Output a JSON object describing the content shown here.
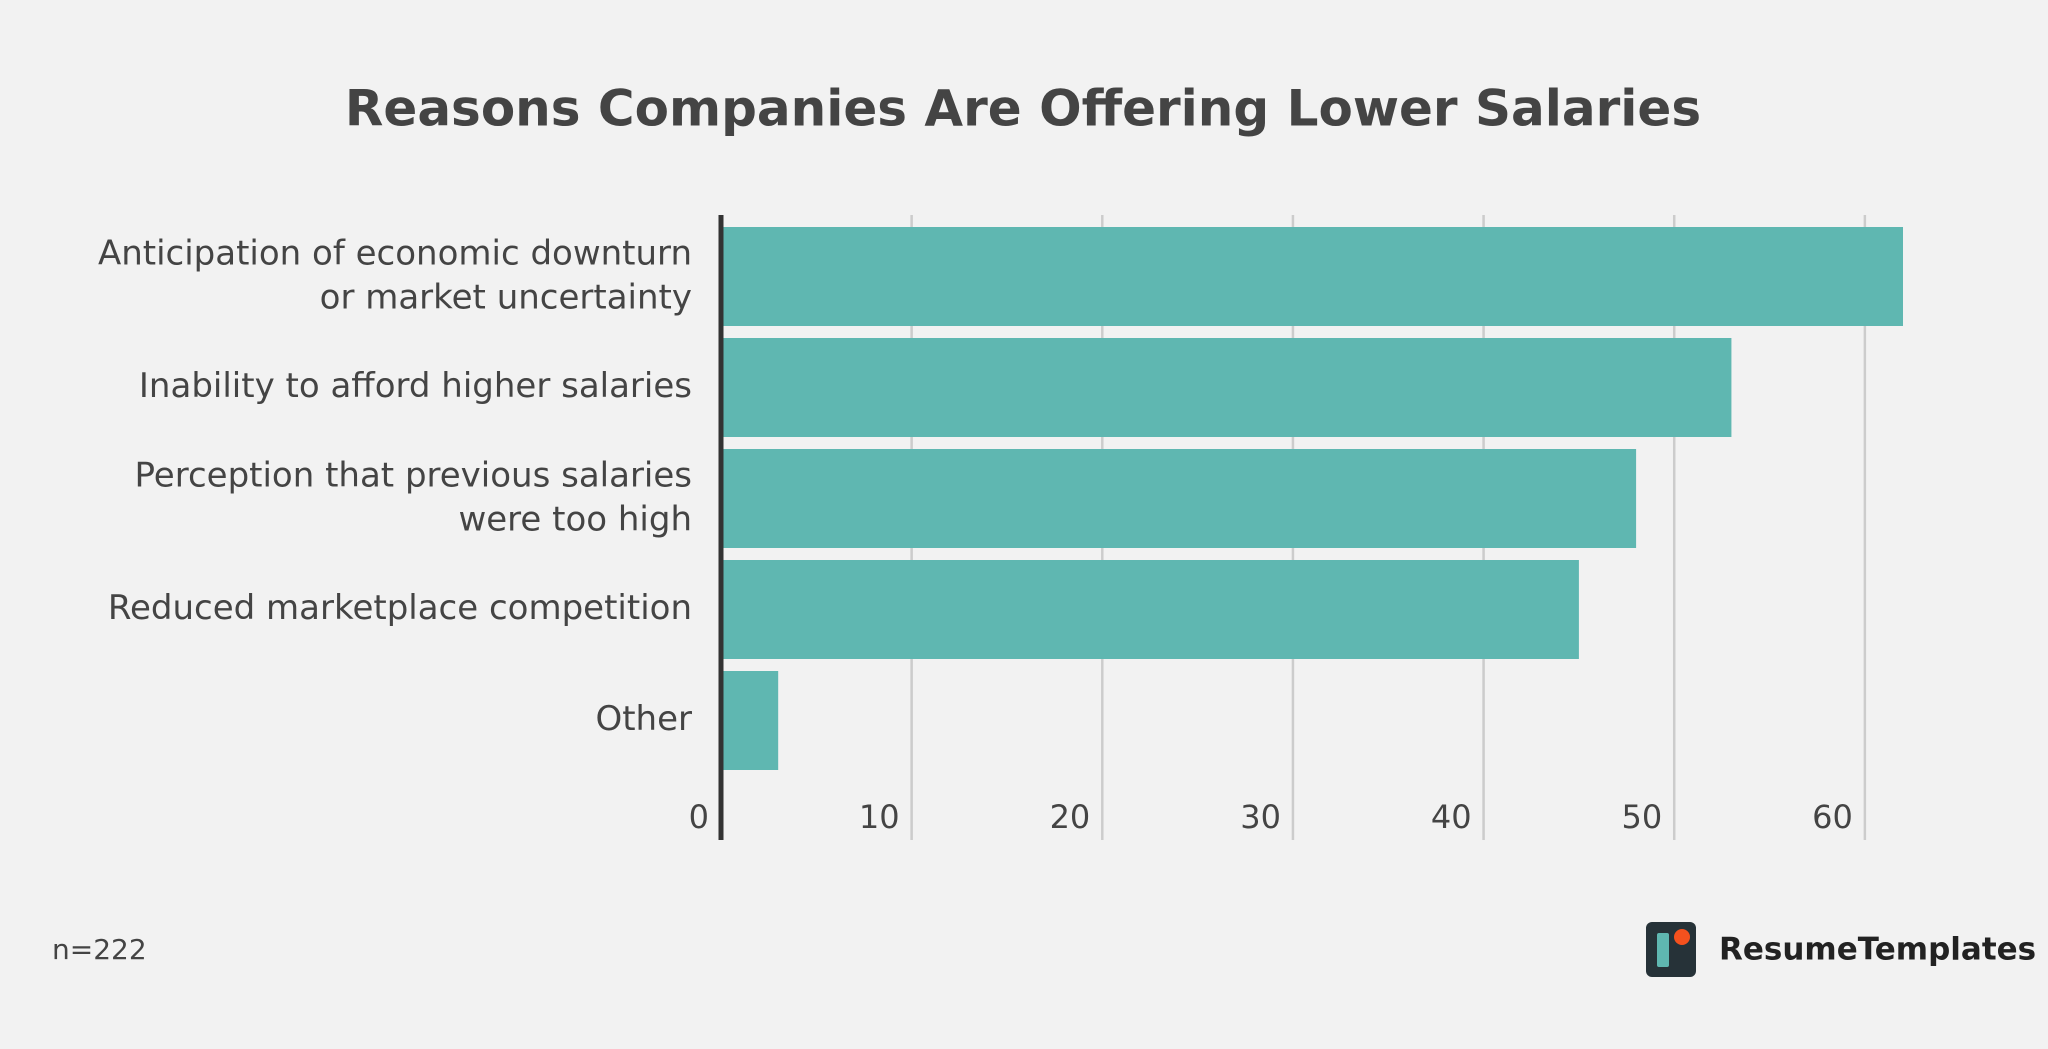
{
  "chart_data": {
    "type": "barh",
    "title": "Reasons Companies Are Offering Lower Salaries",
    "categories": [
      "Anticipation of economic downturn\nor market uncertainty",
      "Inability to afford higher salaries",
      "Perception that previous salaries\nwere too high",
      "Reduced marketplace competition",
      "Other"
    ],
    "values": [
      62,
      53,
      48,
      45,
      3
    ],
    "color": "#5fb7b1",
    "xlim": [
      0,
      62
    ],
    "xticks": [
      0,
      10,
      20,
      30,
      40,
      50,
      60
    ],
    "grid": true,
    "note": "n=222"
  },
  "brand": "ResumeTemplates"
}
